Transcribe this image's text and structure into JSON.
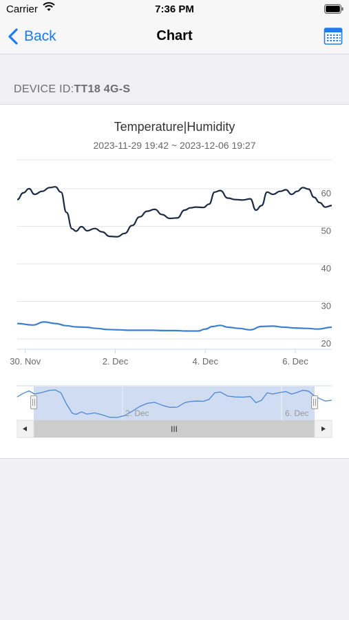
{
  "status_bar": {
    "carrier": "Carrier",
    "time": "7:36 PM"
  },
  "nav": {
    "back_label": "Back",
    "title": "Chart",
    "calendar_icon": "calendar-icon"
  },
  "device": {
    "label": "DEVICE ID:",
    "value": "TT18 4G-S"
  },
  "chart": {
    "title": "Temperature|Humidity",
    "subtitle": "2023-11-29 19:42 ~ 2023-12-06 19:27"
  },
  "navigator": {
    "x_labels": [
      "2. Dec",
      "6. Dec"
    ],
    "scrollbar_grip": "III"
  },
  "colors": {
    "humidity_line": "#1b2a44",
    "temperature_line": "#3c7fd0",
    "accent": "#1e7bf2"
  },
  "chart_data": {
    "type": "line",
    "x_axis": {
      "type": "datetime",
      "tick_labels": [
        "30. Nov",
        "2. Dec",
        "4. Dec",
        "6. Dec"
      ],
      "tick_values": [
        "2023-11-30",
        "2023-12-02",
        "2023-12-04",
        "2023-12-06"
      ]
    },
    "y_axis": {
      "tick_labels": [
        "20",
        "30",
        "40",
        "50",
        "60"
      ],
      "ylim": [
        20,
        60
      ],
      "grid": true,
      "label_side": "right"
    },
    "series": [
      {
        "color": "#1b2a44",
        "points": [
          [
            "2023-11-29 19:42",
            58.4
          ],
          [
            "2023-11-29 23:00",
            60.2
          ],
          [
            "2023-11-30 02:00",
            61.3
          ],
          [
            "2023-11-30 05:00",
            59.8
          ],
          [
            "2023-11-30 09:00",
            60.6
          ],
          [
            "2023-11-30 13:00",
            61.6
          ],
          [
            "2023-11-30 16:00",
            61.8
          ],
          [
            "2023-11-30 19:00",
            60.4
          ],
          [
            "2023-11-30 22:00",
            55.0
          ],
          [
            "2023-12-01 01:00",
            50.6
          ],
          [
            "2023-12-01 03:00",
            50.0
          ],
          [
            "2023-12-01 06:00",
            51.2
          ],
          [
            "2023-12-01 09:00",
            50.1
          ],
          [
            "2023-12-01 13:00",
            50.7
          ],
          [
            "2023-12-01 17:00",
            49.8
          ],
          [
            "2023-12-01 21:00",
            48.6
          ],
          [
            "2023-12-02 01:00",
            48.5
          ],
          [
            "2023-12-02 05:00",
            49.4
          ],
          [
            "2023-12-02 09:00",
            51.5
          ],
          [
            "2023-12-02 13:00",
            53.8
          ],
          [
            "2023-12-02 17:00",
            55.3
          ],
          [
            "2023-12-02 21:00",
            55.8
          ],
          [
            "2023-12-03 01:00",
            54.4
          ],
          [
            "2023-12-03 05:00",
            53.4
          ],
          [
            "2023-12-03 09:00",
            53.5
          ],
          [
            "2023-12-03 13:00",
            55.6
          ],
          [
            "2023-12-03 16:00",
            56.2
          ],
          [
            "2023-12-03 19:00",
            56.4
          ],
          [
            "2023-12-03 23:00",
            56.3
          ],
          [
            "2023-12-04 02:00",
            57.2
          ],
          [
            "2023-12-04 05:00",
            60.4
          ],
          [
            "2023-12-04 08:00",
            60.8
          ],
          [
            "2023-12-04 12:00",
            58.8
          ],
          [
            "2023-12-04 16:00",
            58.4
          ],
          [
            "2023-12-04 20:00",
            58.3
          ],
          [
            "2023-12-05 00:00",
            58.6
          ],
          [
            "2023-12-05 03:00",
            55.6
          ],
          [
            "2023-12-05 06:00",
            56.8
          ],
          [
            "2023-12-05 09:00",
            60.4
          ],
          [
            "2023-12-05 12:00",
            59.8
          ],
          [
            "2023-12-05 16:00",
            60.6
          ],
          [
            "2023-12-05 19:00",
            61.0
          ],
          [
            "2023-12-05 22:00",
            59.8
          ],
          [
            "2023-12-06 01:00",
            60.6
          ],
          [
            "2023-12-06 04:00",
            61.6
          ],
          [
            "2023-12-06 07:00",
            61.2
          ],
          [
            "2023-12-06 10:00",
            59.0
          ],
          [
            "2023-12-06 13:00",
            57.6
          ],
          [
            "2023-12-06 16:00",
            56.4
          ],
          [
            "2023-12-06 19:27",
            56.8
          ]
        ]
      },
      {
        "color": "#3c7fd0",
        "points": [
          [
            "2023-11-29 19:42",
            25.4
          ],
          [
            "2023-11-30 04:00",
            25.0
          ],
          [
            "2023-11-30 10:00",
            25.8
          ],
          [
            "2023-11-30 16:00",
            25.4
          ],
          [
            "2023-11-30 22:00",
            24.8
          ],
          [
            "2023-12-01 03:00",
            24.5
          ],
          [
            "2023-12-01 08:00",
            24.4
          ],
          [
            "2023-12-01 14:00",
            24.1
          ],
          [
            "2023-12-01 20:00",
            23.8
          ],
          [
            "2023-12-02 02:00",
            23.7
          ],
          [
            "2023-12-02 08:00",
            23.6
          ],
          [
            "2023-12-02 14:00",
            23.6
          ],
          [
            "2023-12-02 20:00",
            23.6
          ],
          [
            "2023-12-03 02:00",
            23.5
          ],
          [
            "2023-12-03 08:00",
            23.5
          ],
          [
            "2023-12-03 14:00",
            23.4
          ],
          [
            "2023-12-03 20:00",
            23.4
          ],
          [
            "2023-12-04 00:00",
            23.9
          ],
          [
            "2023-12-04 04:00",
            24.6
          ],
          [
            "2023-12-04 08:00",
            24.9
          ],
          [
            "2023-12-04 12:00",
            24.4
          ],
          [
            "2023-12-04 18:00",
            24.1
          ],
          [
            "2023-12-05 00:00",
            23.7
          ],
          [
            "2023-12-05 06:00",
            24.6
          ],
          [
            "2023-12-05 12:00",
            24.7
          ],
          [
            "2023-12-05 18:00",
            24.4
          ],
          [
            "2023-12-06 00:00",
            24.2
          ],
          [
            "2023-12-06 06:00",
            24.1
          ],
          [
            "2023-12-06 12:00",
            23.9
          ],
          [
            "2023-12-06 19:27",
            24.4
          ]
        ]
      }
    ]
  }
}
